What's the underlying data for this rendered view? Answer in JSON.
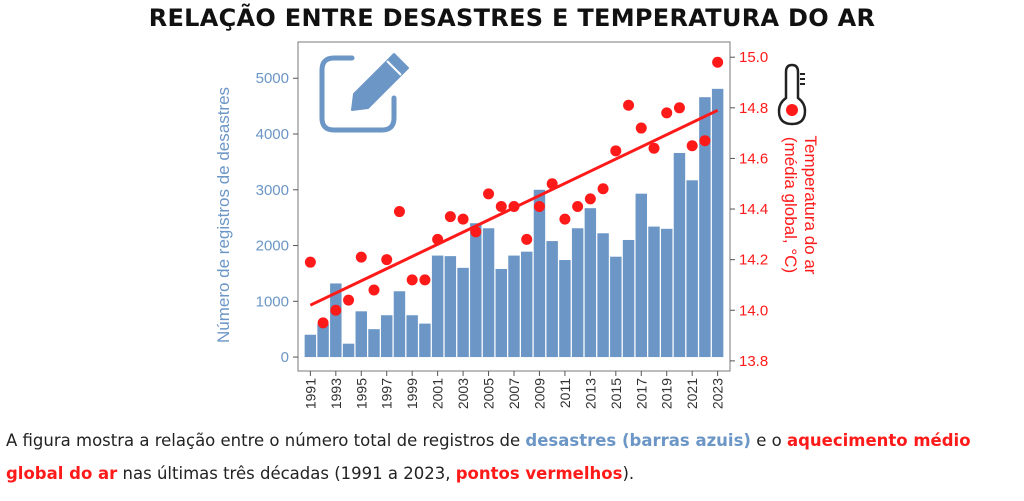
{
  "chart_data": {
    "type": "bar",
    "title": "RELAÇÃO ENTRE DESASTRES E TEMPERATURA DO AR",
    "xlabel": "",
    "ylabel": "Número de registros de desastres",
    "y2label_line1": "Temperatura do ar",
    "y2label_line2": "(média global, °C)",
    "categories": [
      "1991",
      "1992",
      "1993",
      "1994",
      "1995",
      "1996",
      "1997",
      "1998",
      "1999",
      "2000",
      "2001",
      "2002",
      "2003",
      "2004",
      "2005",
      "2006",
      "2007",
      "2008",
      "2009",
      "2010",
      "2011",
      "2012",
      "2013",
      "2014",
      "2015",
      "2016",
      "2017",
      "2018",
      "2019",
      "2020",
      "2021",
      "2022",
      "2023"
    ],
    "x_tick_labels": [
      "1991",
      "1993",
      "1995",
      "1997",
      "1999",
      "2001",
      "2003",
      "2005",
      "2007",
      "2009",
      "2011",
      "2013",
      "2015",
      "2017",
      "2019",
      "2021",
      "2023"
    ],
    "ylim": [
      -250,
      5650
    ],
    "yticks": [
      0,
      1000,
      2000,
      3000,
      4000,
      5000
    ],
    "y2lim": [
      13.76,
      15.06
    ],
    "y2ticks": [
      13.8,
      14.0,
      14.2,
      14.4,
      14.6,
      14.8,
      15.0
    ],
    "grid": false,
    "series": [
      {
        "name": "desastres",
        "kind": "bar",
        "axis": "left",
        "color": "#6b96c6",
        "values": [
          400,
          590,
          1320,
          240,
          820,
          500,
          750,
          1180,
          750,
          600,
          1820,
          1810,
          1600,
          2400,
          2310,
          1580,
          1820,
          1890,
          3000,
          2080,
          1740,
          2310,
          2670,
          2220,
          1800,
          2100,
          2930,
          2340,
          2300,
          3660,
          3170,
          4660,
          4810
        ]
      },
      {
        "name": "temperatura",
        "kind": "scatter",
        "axis": "right",
        "color": "#ff1a1a",
        "values": [
          14.19,
          13.95,
          14.0,
          14.04,
          14.21,
          14.08,
          14.2,
          14.39,
          14.12,
          14.12,
          14.28,
          14.37,
          14.36,
          14.31,
          14.46,
          14.41,
          14.41,
          14.28,
          14.41,
          14.5,
          14.36,
          14.41,
          14.44,
          14.48,
          14.63,
          14.81,
          14.72,
          14.64,
          14.78,
          14.8,
          14.65,
          14.67,
          14.98
        ]
      }
    ],
    "trend_line": {
      "axis": "right",
      "color": "#ff1a1a",
      "start": 14.02,
      "end": 14.79
    }
  },
  "caption": {
    "part1": "A figura mostra a relação entre o número total de registros de ",
    "highlight_blue": "desastres (barras azuis)",
    "part2": " e o ",
    "highlight_red1": "aqueci­mento médio global do ar",
    "part3": " nas últimas três décadas (1991 a 2023, ",
    "highlight_red2": "pontos vermelhos",
    "part4": ")."
  },
  "icons": {
    "edit": "edit-icon",
    "thermometer": "thermometer-icon"
  },
  "colors": {
    "bars": "#6b96c6",
    "temperature": "#ff1a1a",
    "edit_icon": "#6b96c6"
  }
}
